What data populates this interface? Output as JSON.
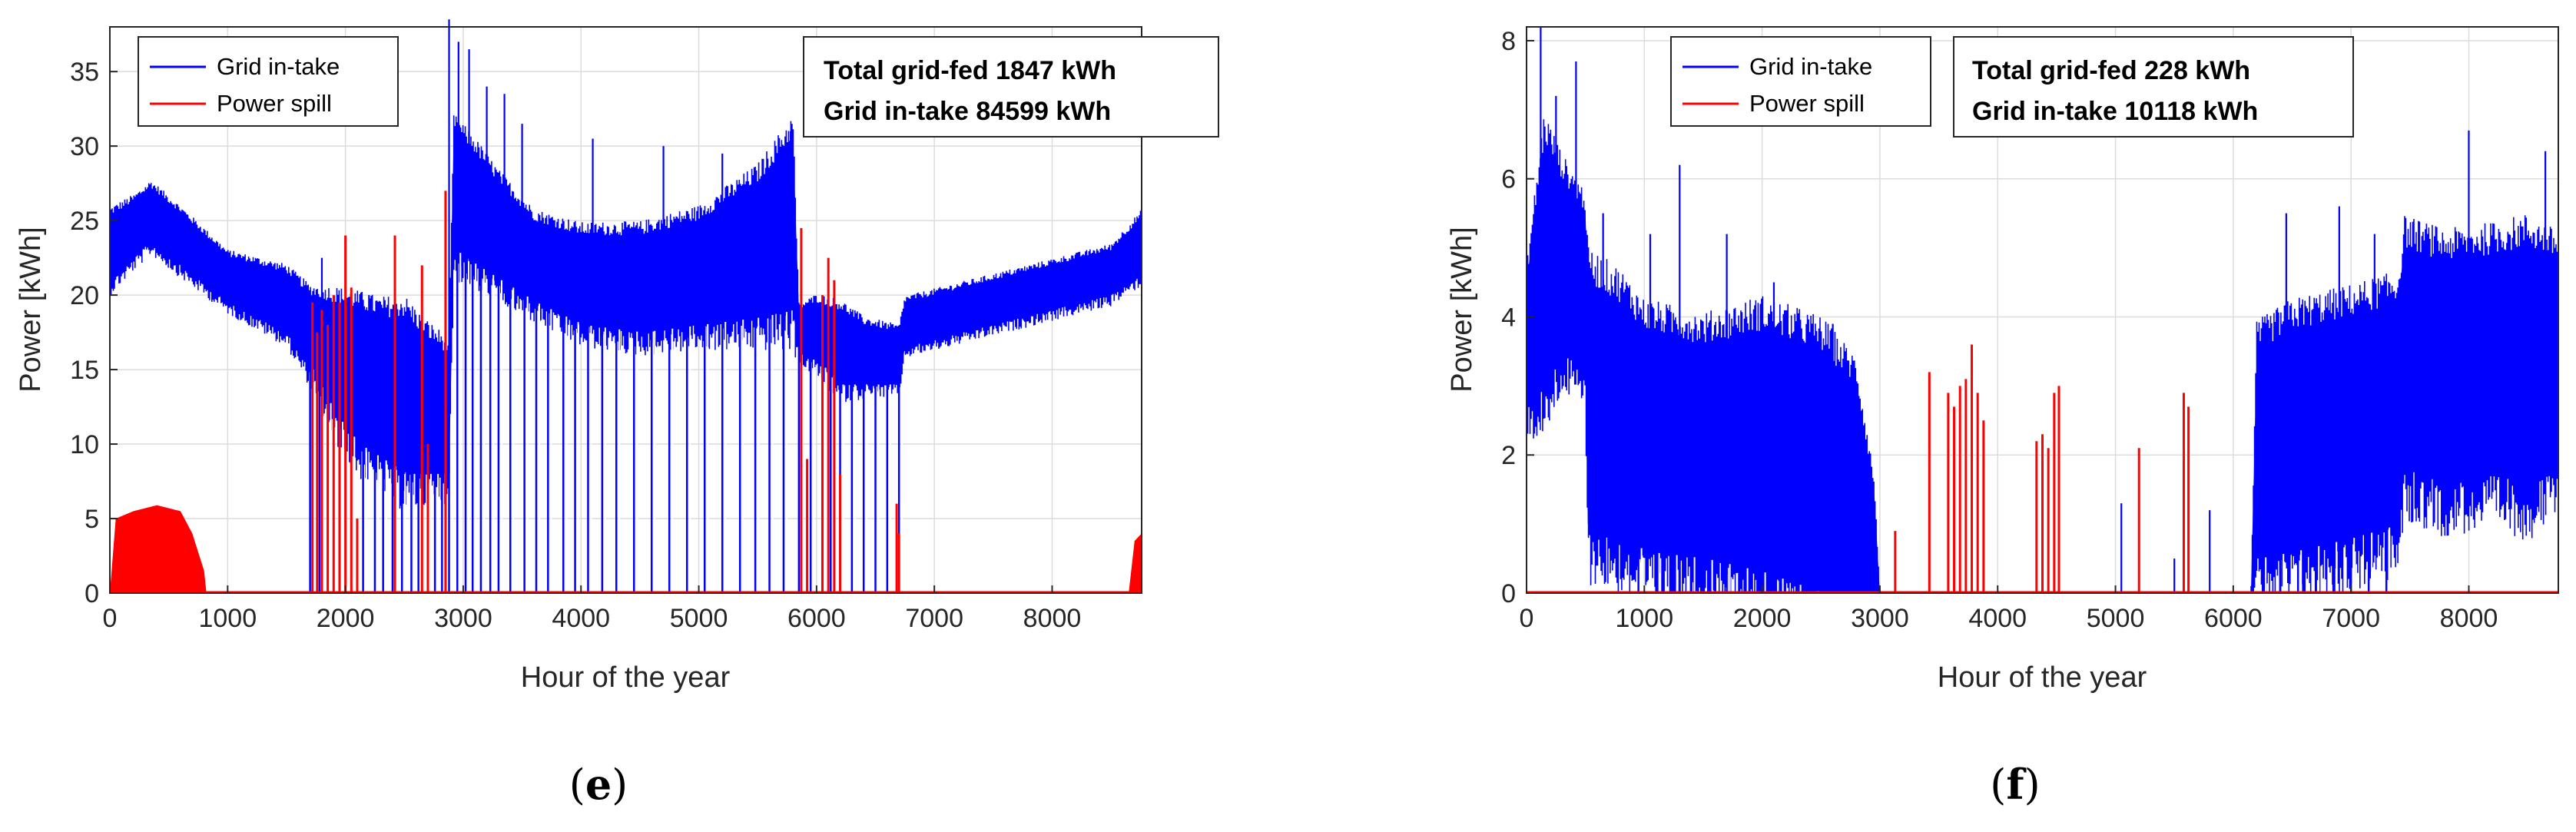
{
  "colors": {
    "grid_intake": "#0000ff",
    "power_spill": "#ff0000",
    "axis": "#262626",
    "grid": "#dcdcdc"
  },
  "chart_data": [
    {
      "id": "e",
      "type": "line",
      "caption_letter": "e",
      "xlabel": "Hour of the year",
      "ylabel": "Power [kWh]",
      "xlim": [
        0,
        8760
      ],
      "ylim": [
        0,
        38
      ],
      "xticks": [
        0,
        1000,
        2000,
        3000,
        4000,
        5000,
        6000,
        7000,
        8000
      ],
      "yticks": [
        0,
        5,
        10,
        15,
        20,
        25,
        30,
        35
      ],
      "grid": true,
      "legend": {
        "position": "top-left",
        "entries": [
          "Grid in-take",
          "Power spill"
        ]
      },
      "annotation": {
        "line1": "Total grid-fed 1847 kWh",
        "line2": "Grid in-take 84599 kWh"
      },
      "series": [
        {
          "name": "Grid in-take",
          "envelope": {
            "x": [
              0,
              200,
              350,
              600,
              1000,
              1500,
              1700,
              1900,
              2100,
              2300,
              2500,
              2700,
              2880,
              2920,
              3100,
              3300,
              3600,
              4000,
              4500,
              5000,
              5500,
              5800,
              5850,
              6000,
              6200,
              6400,
              6700,
              6750,
              7000,
              7500,
              8000,
              8500,
              8760
            ],
            "upper": [
              25.3,
              26.2,
              27.2,
              25.5,
              22.6,
              21.5,
              20.0,
              19.5,
              19.0,
              18.5,
              18.5,
              17.0,
              16.0,
              31.0,
              29.5,
              27.5,
              25.0,
              24.0,
              24.0,
              25.0,
              27.5,
              30.5,
              19.0,
              19.5,
              19.0,
              18.0,
              17.5,
              19.5,
              20.0,
              21.0,
              22.0,
              23.0,
              25.2
            ],
            "lower": [
              21.0,
              22.5,
              23.6,
              22.0,
              19.5,
              17.5,
              15.0,
              12.0,
              10.0,
              9.0,
              8.0,
              8.0,
              8.0,
              23.0,
              22.0,
              21.0,
              19.5,
              18.0,
              17.5,
              18.0,
              18.5,
              19.0,
              16.0,
              15.5,
              14.0,
              14.0,
              14.0,
              16.5,
              17.0,
              18.0,
              19.0,
              20.0,
              21.5
            ]
          },
          "peaks": [
            [
              2880,
              38.5
            ],
            [
              2960,
              37.0
            ],
            [
              3050,
              36.5
            ],
            [
              3200,
              34.0
            ],
            [
              3350,
              33.5
            ],
            [
              3500,
              31.5
            ],
            [
              4100,
              30.5
            ],
            [
              4700,
              30.0
            ],
            [
              5200,
              29.5
            ],
            [
              5780,
              31.0
            ],
            [
              1800,
              22.5
            ],
            [
              2050,
              20.5
            ],
            [
              2200,
              20.0
            ],
            [
              2500,
              16.0
            ]
          ],
          "drops_to_zero": [
            1700,
            1780,
            1850,
            1950,
            2050,
            2150,
            2250,
            2320,
            2400,
            2480,
            2560,
            2620,
            2700,
            2760,
            2820,
            2880,
            2950,
            3020,
            3080,
            3150,
            3230,
            3300,
            3400,
            3520,
            3620,
            3720,
            3850,
            3950,
            4060,
            4180,
            4300,
            4450,
            4600,
            4750,
            4900,
            5050,
            5200,
            5350,
            5480,
            5600,
            5720,
            5850,
            5950,
            6050,
            6120,
            6200,
            6300,
            6400,
            6500,
            6600,
            6700
          ]
        },
        {
          "name": "Power spill",
          "filled_regions": [
            {
              "x": [
                0,
                50,
                200,
                400,
                600,
                700,
                800,
                820
              ],
              "y": [
                0,
                5.0,
                5.5,
                5.9,
                5.5,
                4.0,
                1.5,
                0
              ]
            },
            {
              "x": [
                8650,
                8700,
                8760
              ],
              "y": [
                0,
                3.5,
                4.0
              ]
            }
          ],
          "spikes": [
            [
              1720,
              19.5
            ],
            [
              1760,
              17.5
            ],
            [
              1800,
              19.0
            ],
            [
              1850,
              18.0
            ],
            [
              1900,
              20.0
            ],
            [
              1950,
              19.5
            ],
            [
              2000,
              24.0
            ],
            [
              2050,
              20.5
            ],
            [
              2100,
              5.0
            ],
            [
              2420,
              24.0
            ],
            [
              2650,
              22.0
            ],
            [
              2700,
              10.0
            ],
            [
              2850,
              27.0
            ],
            [
              5870,
              24.5
            ],
            [
              5920,
              9.0
            ],
            [
              6050,
              20.0
            ],
            [
              6100,
              22.5
            ],
            [
              6150,
              21.0
            ],
            [
              6200,
              8.0
            ],
            [
              6680,
              6.0
            ],
            [
              6700,
              4.0
            ]
          ]
        }
      ]
    },
    {
      "id": "f",
      "type": "line",
      "caption_letter": "f",
      "xlabel": "Hour of the year",
      "ylabel": "Power [kWh]",
      "xlim": [
        0,
        8760
      ],
      "ylim": [
        0,
        8.2
      ],
      "xticks": [
        0,
        1000,
        2000,
        3000,
        4000,
        5000,
        6000,
        7000,
        8000
      ],
      "yticks": [
        0,
        2,
        4,
        6,
        8
      ],
      "grid": true,
      "legend": {
        "position": "top-left",
        "entries": [
          "Grid in-take",
          "Power spill"
        ]
      },
      "annotation": {
        "line1": "Total grid-fed 228 kWh",
        "line2": "Grid in-take 10118 kWh"
      },
      "series": [
        {
          "name": "Grid in-take",
          "envelope": {
            "x": [
              0,
              150,
              300,
              500,
              520,
              800,
              1000,
              1500,
              2000,
              2500,
              2800,
              2950,
              3000,
              6150,
              6200,
              6500,
              7000,
              7400,
              7450,
              7800,
              8200,
              8500,
              8760
            ],
            "upper": [
              4.5,
              6.5,
              6.0,
              5.5,
              4.5,
              4.2,
              3.8,
              3.6,
              3.8,
              3.5,
              3.0,
              1.5,
              0,
              0,
              3.5,
              3.8,
              4.0,
              4.2,
              5.0,
              4.8,
              4.9,
              5.0,
              4.8
            ],
            "lower": [
              2.7,
              3.0,
              3.5,
              3.2,
              1.0,
              0.8,
              0.6,
              0.5,
              0.3,
              0.0,
              0.0,
              0.0,
              0,
              0,
              0.5,
              0.6,
              0.8,
              1.0,
              1.8,
              1.6,
              1.7,
              1.6,
              1.8
            ]
          },
          "peaks": [
            [
              120,
              8.2
            ],
            [
              250,
              7.2
            ],
            [
              420,
              7.7
            ],
            [
              650,
              5.5
            ],
            [
              1050,
              5.2
            ],
            [
              1300,
              6.2
            ],
            [
              1700,
              5.2
            ],
            [
              2100,
              4.5
            ],
            [
              2600,
              3.9
            ],
            [
              5050,
              1.3
            ],
            [
              5500,
              0.5
            ],
            [
              5800,
              1.2
            ],
            [
              6450,
              5.5
            ],
            [
              6900,
              5.6
            ],
            [
              7200,
              5.2
            ],
            [
              8000,
              6.7
            ],
            [
              8650,
              6.4
            ]
          ],
          "drops_to_zero": [
            950,
            1100,
            1250,
            1400,
            1550,
            1700,
            1850,
            2000,
            2150,
            2300,
            2450,
            2600,
            2750,
            2880,
            6250,
            6400,
            6550,
            6700,
            6850,
            7000,
            7150,
            7300
          ]
        },
        {
          "name": "Power spill",
          "baseline": 0,
          "spikes": [
            [
              3130,
              0.9
            ],
            [
              3420,
              3.2
            ],
            [
              3580,
              2.9
            ],
            [
              3630,
              2.7
            ],
            [
              3680,
              3.0
            ],
            [
              3730,
              3.1
            ],
            [
              3780,
              3.6
            ],
            [
              3830,
              2.9
            ],
            [
              3880,
              2.5
            ],
            [
              4330,
              2.2
            ],
            [
              4380,
              2.3
            ],
            [
              4430,
              2.1
            ],
            [
              4480,
              2.9
            ],
            [
              4520,
              3.0
            ],
            [
              5200,
              2.1
            ],
            [
              5580,
              2.9
            ],
            [
              5620,
              2.7
            ]
          ]
        }
      ]
    }
  ]
}
